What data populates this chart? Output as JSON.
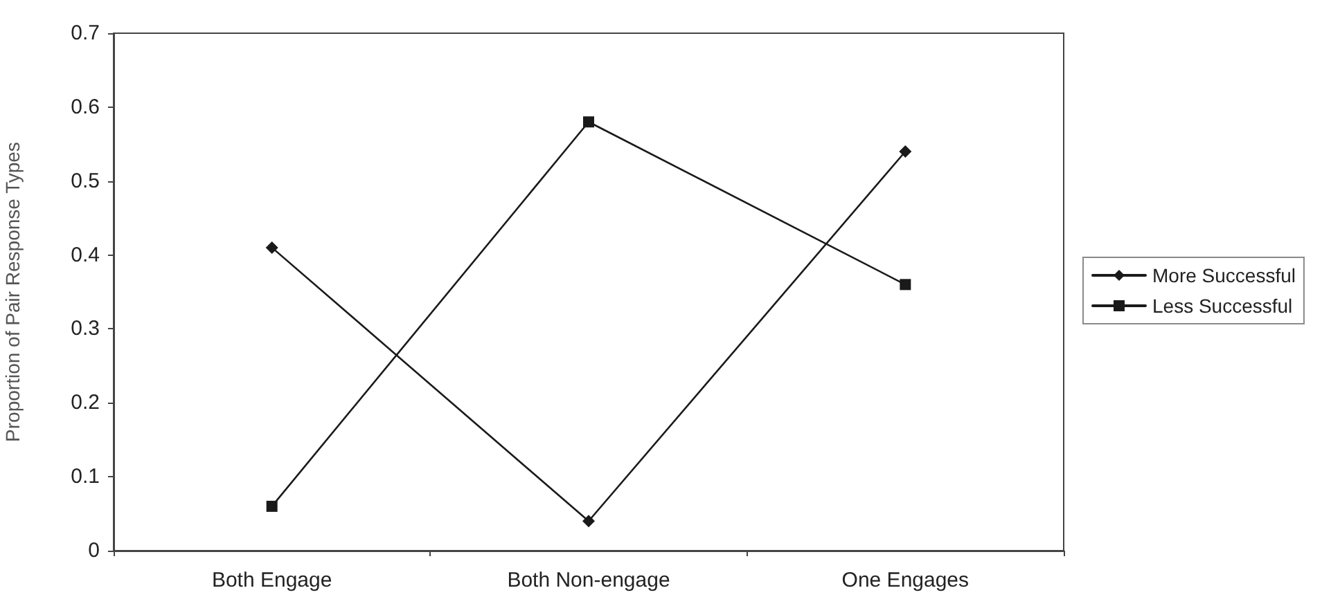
{
  "chart_data": {
    "type": "line",
    "ylabel": "Proportion of Pair Response Types",
    "categories": [
      "Both Engage",
      "Both Non-engage",
      "One Engages"
    ],
    "series": [
      {
        "name": "More Successful",
        "color": "#1a1a1a",
        "marker": "diamond",
        "values": [
          0.41,
          0.04,
          0.54
        ]
      },
      {
        "name": "Less Successful",
        "color": "#1a1a1a",
        "marker": "square",
        "values": [
          0.06,
          0.58,
          0.36
        ]
      }
    ],
    "ylim": [
      0,
      0.7
    ],
    "yticks": [
      0,
      0.1,
      0.2,
      0.3,
      0.4,
      0.5,
      0.6,
      0.7
    ],
    "grid": false,
    "legend": "right",
    "line_style": "solid"
  }
}
